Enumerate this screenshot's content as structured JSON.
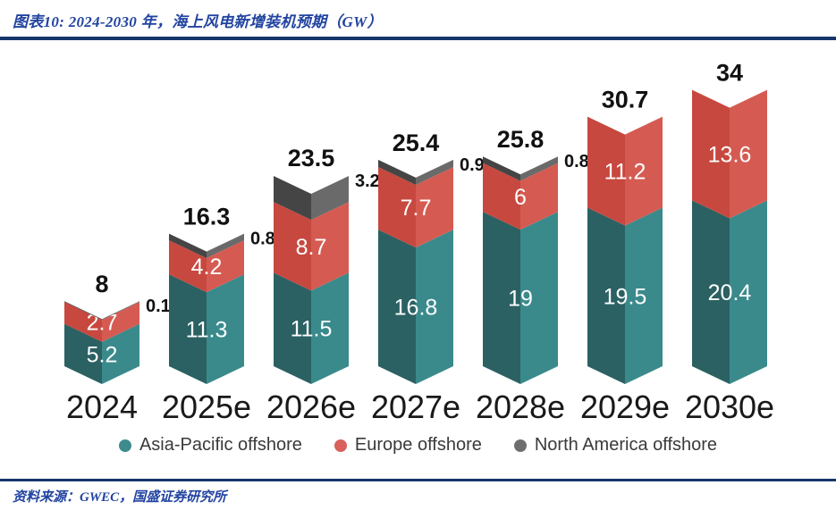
{
  "header": {
    "title": "图表10:  2024-2030 年，海上风电新增装机预期（GW）"
  },
  "footer": {
    "source": "资料来源：GWEC，国盛证券研究所"
  },
  "colors": {
    "navy_rule": "#17356b",
    "title_text": "#2244a0",
    "teal_left": "#2b6163",
    "teal_right": "#3a8a8c",
    "red_left": "#c7483f",
    "red_right": "#d55b52",
    "gray_left": "#454545",
    "gray_right": "#6a6a6a",
    "total_label": "#111111",
    "segment_label": "#ffffff",
    "axis_label": "#191919"
  },
  "legend": {
    "items": [
      {
        "label": "Asia-Pacific offshore",
        "color": "#3e8b8d"
      },
      {
        "label": "Europe offshore",
        "color": "#d9615b"
      },
      {
        "label": "North America offshore",
        "color": "#6e6e6e"
      }
    ]
  },
  "chart_data": {
    "type": "bar",
    "stacked": true,
    "unit": "GW",
    "title": "2024-2030 年，海上风电新增装机预期（GW）",
    "categories": [
      "2024",
      "2025e",
      "2026e",
      "2027e",
      "2028e",
      "2029e",
      "2030e"
    ],
    "series": [
      {
        "name": "Asia-Pacific offshore",
        "color_key": "teal",
        "values": [
          5.2,
          11.3,
          11.5,
          16.8,
          19,
          19.5,
          20.4
        ]
      },
      {
        "name": "Europe offshore",
        "color_key": "red",
        "values": [
          2.7,
          4.2,
          8.7,
          7.7,
          6,
          11.2,
          13.6
        ]
      },
      {
        "name": "North America offshore",
        "color_key": "gray",
        "values": [
          0.1,
          0.8,
          3.2,
          0.9,
          0.8,
          0,
          0
        ]
      }
    ],
    "totals": [
      8,
      16.3,
      23.5,
      25.4,
      25.8,
      30.7,
      34
    ],
    "outside_labels_series": "North America offshore",
    "ylim": [
      0,
      36
    ],
    "grid": false,
    "legend_position": "bottom"
  }
}
